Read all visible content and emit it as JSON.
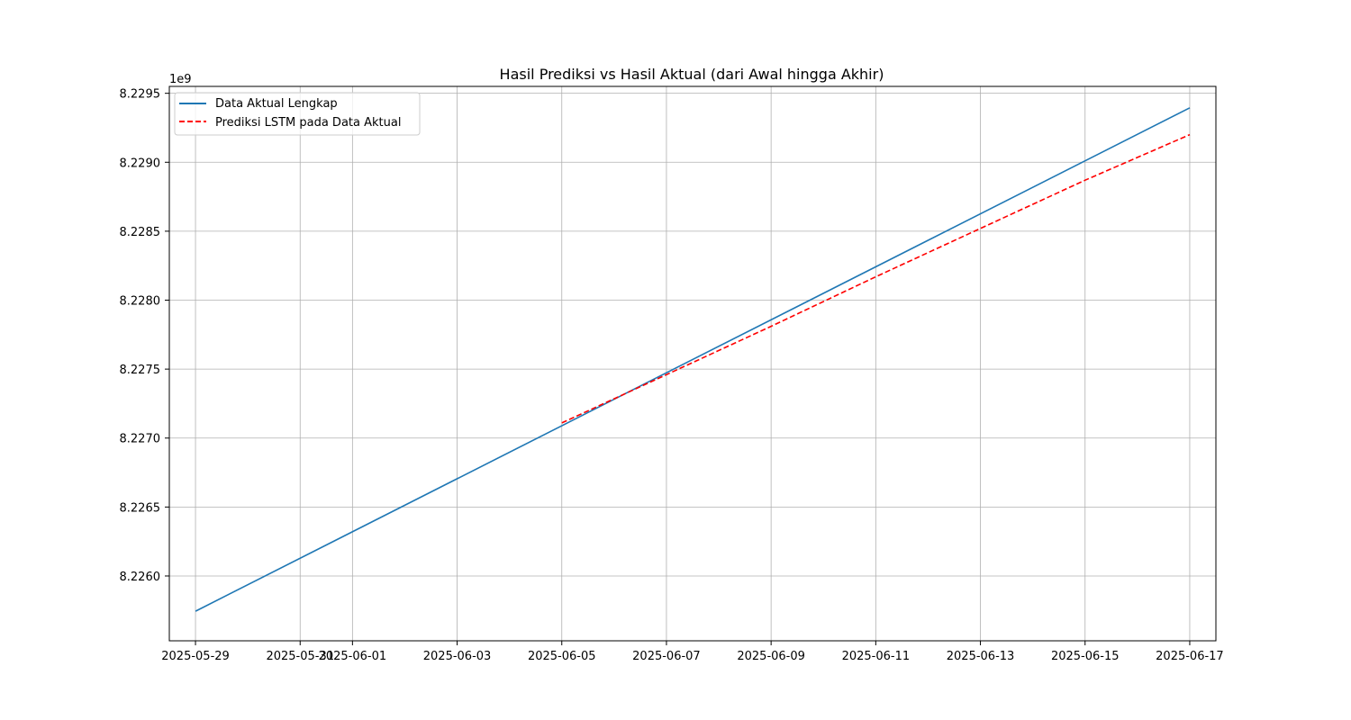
{
  "chart_data": {
    "type": "line",
    "title": "Hasil Prediksi vs Hasil Aktual (dari Awal hingga Akhir)",
    "xlabel": "",
    "ylabel": "",
    "y_offset_label": "1e9",
    "y_scale": 1000000000,
    "xlim": [
      "2025-05-28T12:00",
      "2025-06-17T12:00"
    ],
    "ylim": [
      8.22553,
      8.22955
    ],
    "x_ticks": [
      {
        "date": "2025-05-29",
        "label": "2025-05-29"
      },
      {
        "date": "2025-05-31",
        "label": "2025-05-31"
      },
      {
        "date": "2025-06-01",
        "label": "2025-06-01"
      },
      {
        "date": "2025-06-03",
        "label": "2025-06-03"
      },
      {
        "date": "2025-06-05",
        "label": "2025-06-05"
      },
      {
        "date": "2025-06-07",
        "label": "2025-06-07"
      },
      {
        "date": "2025-06-09",
        "label": "2025-06-09"
      },
      {
        "date": "2025-06-11",
        "label": "2025-06-11"
      },
      {
        "date": "2025-06-13",
        "label": "2025-06-13"
      },
      {
        "date": "2025-06-15",
        "label": "2025-06-15"
      },
      {
        "date": "2025-06-17",
        "label": "2025-06-17"
      }
    ],
    "y_ticks": [
      {
        "value": 8.226,
        "label": "8.2260"
      },
      {
        "value": 8.2265,
        "label": "8.2265"
      },
      {
        "value": 8.227,
        "label": "8.2270"
      },
      {
        "value": 8.2275,
        "label": "8.2275"
      },
      {
        "value": 8.228,
        "label": "8.2280"
      },
      {
        "value": 8.2285,
        "label": "8.2285"
      },
      {
        "value": 8.229,
        "label": "8.2290"
      },
      {
        "value": 8.2295,
        "label": "8.2295"
      }
    ],
    "grid": true,
    "legend_position": "top-left",
    "series": [
      {
        "name": "Data Aktual Lengkap",
        "color": "#1f77b4",
        "style": "solid",
        "points": [
          {
            "x": "2025-05-29",
            "y": 8.225745
          },
          {
            "x": "2025-06-17",
            "y": 8.229395
          }
        ]
      },
      {
        "name": "Prediksi LSTM pada Data Aktual",
        "color": "#ff0000",
        "style": "dashed",
        "points": [
          {
            "x": "2025-06-05",
            "y": 8.22711
          },
          {
            "x": "2025-06-07",
            "y": 8.22746
          },
          {
            "x": "2025-06-09",
            "y": 8.22781
          },
          {
            "x": "2025-06-11",
            "y": 8.22817
          },
          {
            "x": "2025-06-13",
            "y": 8.22852
          },
          {
            "x": "2025-06-15",
            "y": 8.22887
          },
          {
            "x": "2025-06-17",
            "y": 8.2292
          }
        ]
      }
    ]
  }
}
